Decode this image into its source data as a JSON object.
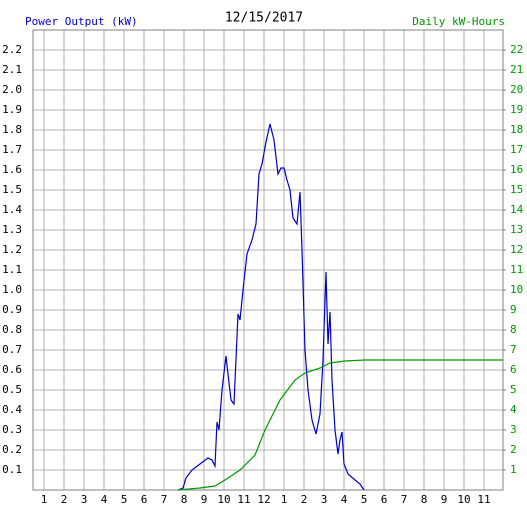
{
  "chart_data": {
    "type": "line",
    "title": "12/15/2017",
    "series": [
      {
        "name": "Power Output (kW)",
        "color": "#0000cc",
        "x": [
          7.7,
          7.95,
          8.1,
          8.4,
          8.8,
          9.2,
          9.4,
          9.55,
          9.65,
          9.75,
          9.9,
          10.1,
          10.2,
          10.35,
          10.5,
          10.7,
          10.8,
          10.95,
          11.15,
          11.4,
          11.6,
          11.75,
          11.9,
          12.1,
          12.3,
          12.5,
          12.7,
          12.85,
          13.0,
          13.15,
          13.3,
          13.45,
          13.65,
          13.8,
          13.9,
          14.05,
          14.2,
          14.4,
          14.6,
          14.8,
          14.95,
          15.1,
          15.2,
          15.3,
          15.4,
          15.55,
          15.7,
          15.8,
          15.9,
          16.0,
          16.2,
          16.55,
          16.8,
          17.0
        ],
        "values": [
          0,
          0.01,
          0.06,
          0.1,
          0.13,
          0.16,
          0.15,
          0.12,
          0.34,
          0.3,
          0.5,
          0.67,
          0.58,
          0.45,
          0.43,
          0.88,
          0.85,
          1.0,
          1.18,
          1.25,
          1.33,
          1.58,
          1.63,
          1.74,
          1.83,
          1.75,
          1.58,
          1.61,
          1.61,
          1.55,
          1.5,
          1.36,
          1.33,
          1.49,
          1.2,
          0.7,
          0.5,
          0.35,
          0.28,
          0.38,
          0.65,
          1.09,
          0.73,
          0.89,
          0.55,
          0.3,
          0.18,
          0.25,
          0.29,
          0.13,
          0.08,
          0.05,
          0.03,
          0
        ]
      },
      {
        "name": "Daily kW-Hours",
        "color": "#009900",
        "axis": "y2",
        "x": [
          7.7,
          8.8,
          9.55,
          10.05,
          10.8,
          11.55,
          12.05,
          12.8,
          13.55,
          14.05,
          14.8,
          15.3,
          16.05,
          17.05,
          23.95
        ],
        "values": [
          0,
          0.1,
          0.2,
          0.5,
          1.0,
          1.75,
          3.0,
          4.5,
          5.5,
          5.85,
          6.1,
          6.35,
          6.45,
          6.5,
          6.5
        ]
      }
    ],
    "xlim": [
      0.45,
      23.95
    ],
    "xticks": [
      1,
      2,
      3,
      4,
      5,
      6,
      7,
      8,
      9,
      10,
      11,
      12,
      {
        "value": 13,
        "label": "1"
      },
      {
        "value": 14,
        "label": "2"
      },
      {
        "value": 15,
        "label": "3"
      },
      {
        "value": 16,
        "label": "4"
      },
      {
        "value": 17,
        "label": "5"
      },
      {
        "value": 18,
        "label": "6"
      },
      {
        "value": 19,
        "label": "7"
      },
      {
        "value": 20,
        "label": "8"
      },
      {
        "value": 21,
        "label": "9"
      },
      {
        "value": 22,
        "label": "10"
      },
      {
        "value": 23,
        "label": "11"
      }
    ],
    "ylim": [
      0,
      2.3
    ],
    "yticks": [
      0.1,
      0.2,
      0.3,
      0.4,
      0.5,
      0.6,
      0.7,
      0.8,
      0.9,
      {
        "value": 1,
        "label": "1.0"
      },
      1.1,
      1.2,
      1.3,
      1.4,
      1.5,
      1.6,
      1.7,
      1.8,
      1.9,
      {
        "value": 2,
        "label": "2.0"
      },
      2.1,
      2.2
    ],
    "y2lim": [
      0,
      23
    ],
    "y2ticks": [
      1,
      2,
      3,
      4,
      5,
      6,
      7,
      8,
      9,
      10,
      11,
      12,
      13,
      14,
      15,
      16,
      17,
      18,
      19,
      20,
      21,
      22
    ],
    "grid": true
  }
}
